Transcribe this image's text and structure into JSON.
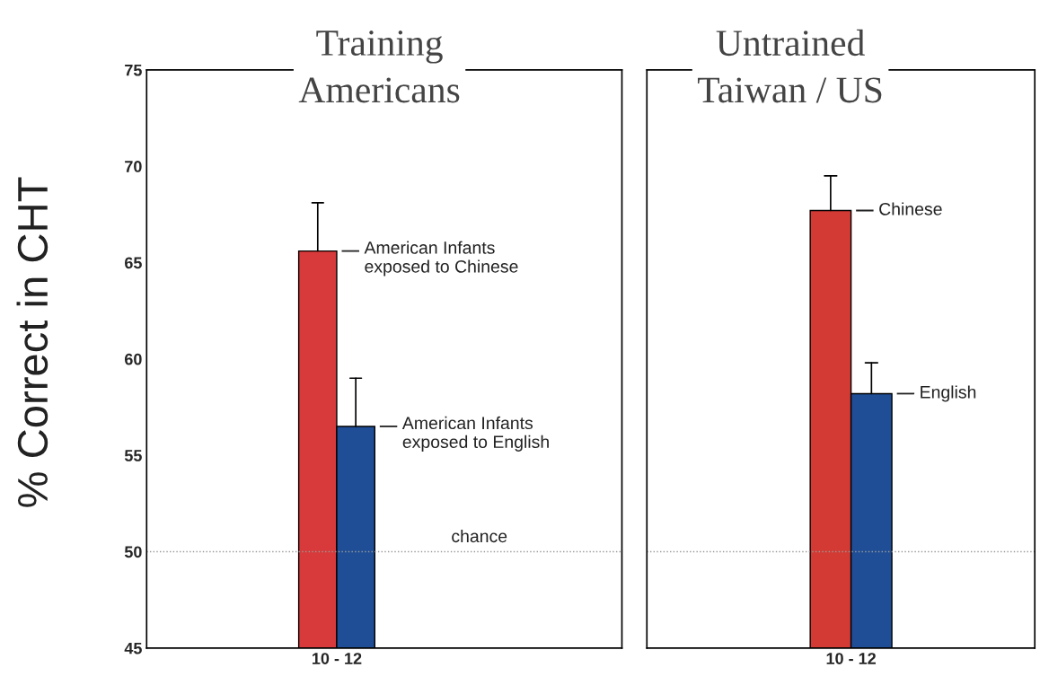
{
  "chart_data": [
    {
      "type": "bar",
      "title": "Training\nAmericans",
      "ylabel": "% Correct in CHT",
      "categories": [
        "10 - 12"
      ],
      "ylim": [
        45,
        75
      ],
      "yticks": [
        45,
        50,
        55,
        60,
        65,
        70,
        75
      ],
      "grid": false,
      "legend": false,
      "series": [
        {
          "name": "American Infants\nexposed to Chinese",
          "color": "#d8393a",
          "values": [
            65.6
          ],
          "errors": [
            [
              65.6,
              68.1
            ]
          ]
        },
        {
          "name": "American Infants\nexposed to English",
          "color": "#1f4e96",
          "values": [
            56.5
          ],
          "errors": [
            [
              56.5,
              59.0
            ]
          ]
        }
      ],
      "ref_lines": [
        {
          "axis": "y",
          "value": 50,
          "label": "chance",
          "line_style": "dotted",
          "color": "#999999"
        }
      ]
    },
    {
      "type": "bar",
      "title": "Untrained",
      "subtitle": "Taiwan / US",
      "categories": [
        "10 - 12"
      ],
      "ylim": [
        45,
        75
      ],
      "yticks": [
        45,
        50,
        55,
        60,
        65,
        70,
        75
      ],
      "tick_labels": "x",
      "grid": false,
      "legend": false,
      "series": [
        {
          "name": "Chinese",
          "color": "#d33a33",
          "values": [
            67.7
          ],
          "errors": [
            [
              67.7,
              69.5
            ]
          ]
        },
        {
          "name": "English",
          "color": "#1f4e96",
          "values": [
            58.2
          ],
          "errors": [
            [
              58.2,
              59.8
            ]
          ]
        }
      ],
      "ref_lines": [
        {
          "axis": "y",
          "value": 50,
          "label": null,
          "line_style": "dotted",
          "color": "#999999"
        }
      ]
    }
  ]
}
